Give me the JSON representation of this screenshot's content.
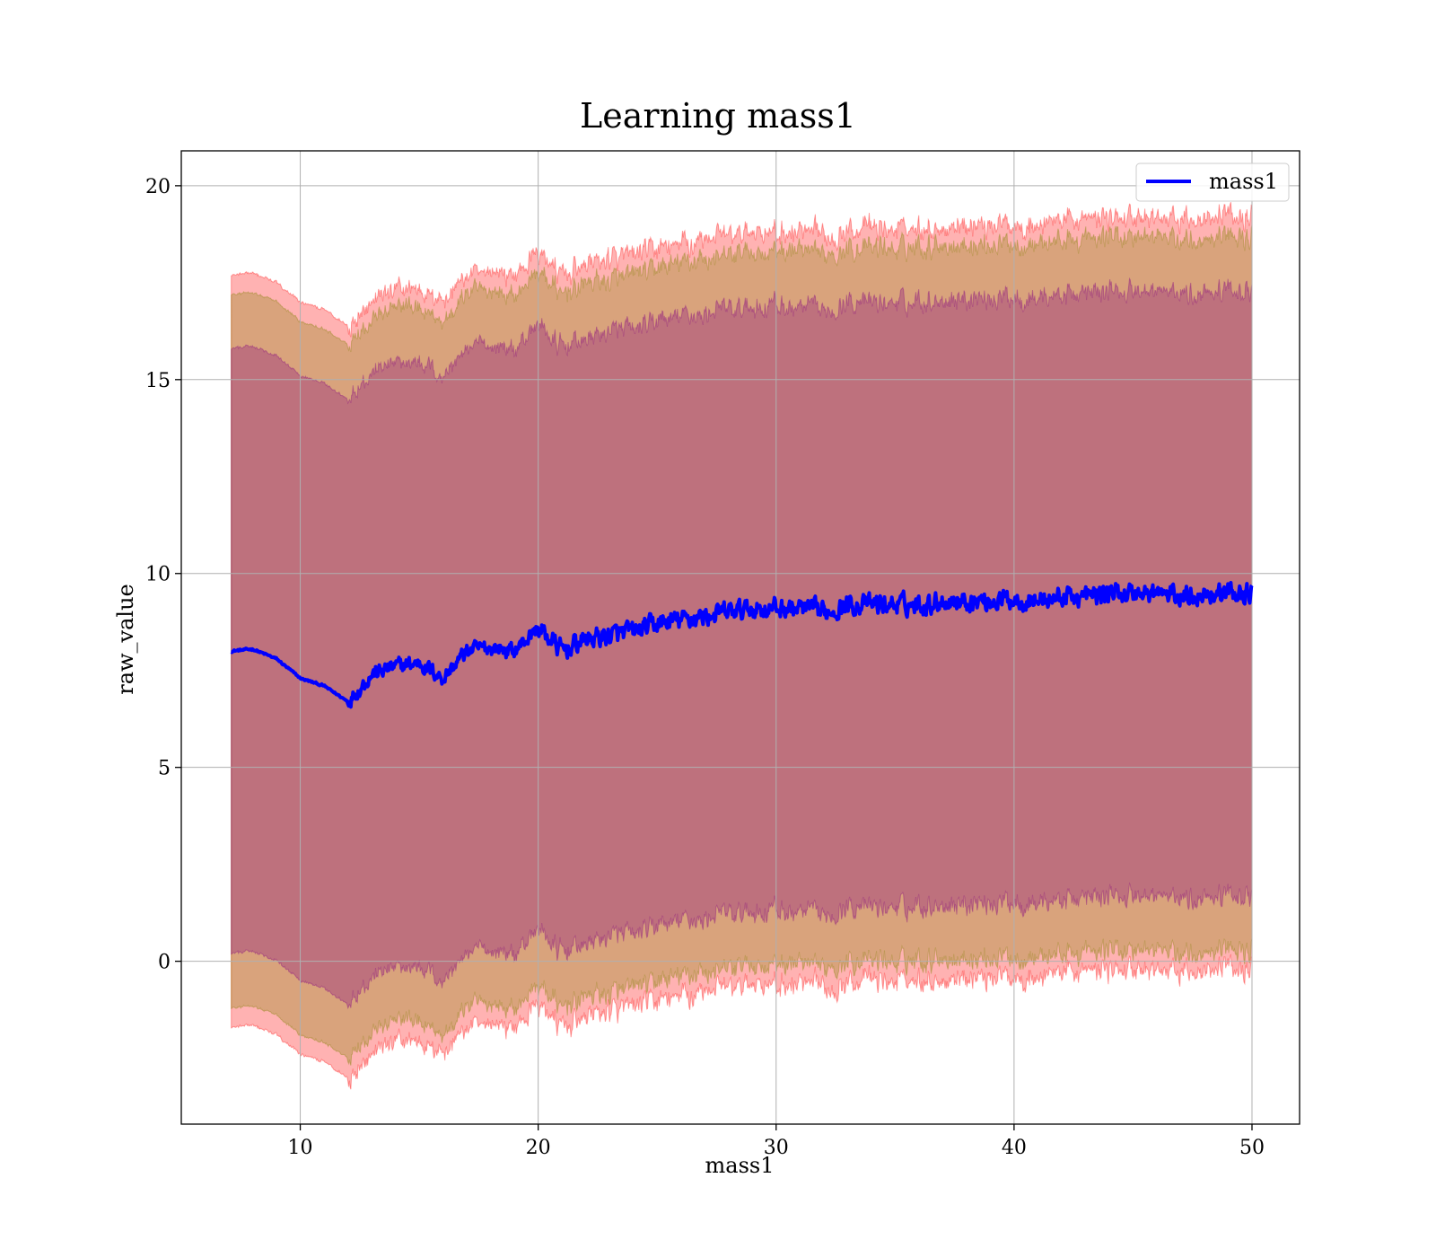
{
  "chart_data": {
    "type": "line",
    "title": "Learning mass1",
    "xlabel": "mass1",
    "ylabel": "raw_value",
    "xlim": [
      5,
      52
    ],
    "ylim": [
      -4.2,
      20.9
    ],
    "xticks": [
      10,
      20,
      30,
      40,
      50
    ],
    "yticks": [
      0,
      5,
      10,
      15,
      20
    ],
    "grid": true,
    "legend": {
      "position": "top-right",
      "entries": [
        "mass1"
      ]
    },
    "colors": {
      "line": "#0000ff",
      "band_outer": "#ff0000",
      "band_mid": "#808000",
      "band_inner": "#800080"
    },
    "series": [
      {
        "name": "mass1",
        "x": [
          7.1,
          8.0,
          9.0,
          10.0,
          11.0,
          12.0,
          13.0,
          14.0,
          15.0,
          16.0,
          17.0,
          18.0,
          19.0,
          20.0,
          21.0,
          22.0,
          23.0,
          24.0,
          25.0,
          26.0,
          27.0,
          28.0,
          29.0,
          30.0,
          31.0,
          32.0,
          33.0,
          34.0,
          35.0,
          36.0,
          37.0,
          38.0,
          39.0,
          40.0,
          41.0,
          42.0,
          43.0,
          44.0,
          45.0,
          46.0,
          47.0,
          48.0,
          49.0,
          50.0
        ],
        "y": [
          8.0,
          8.05,
          7.8,
          7.3,
          7.1,
          6.7,
          7.4,
          7.6,
          7.7,
          7.3,
          8.0,
          8.1,
          8.0,
          8.6,
          8.0,
          8.3,
          8.4,
          8.5,
          8.7,
          8.8,
          8.9,
          9.0,
          9.1,
          9.1,
          9.1,
          9.0,
          9.2,
          9.2,
          9.2,
          9.2,
          9.3,
          9.3,
          9.3,
          9.35,
          9.3,
          9.4,
          9.4,
          9.5,
          9.5,
          9.5,
          9.4,
          9.5,
          9.5,
          9.5
        ],
        "band_inner_half_width": 7.8,
        "band_mid_half_width": 9.2,
        "band_outer_half_width": 9.7
      }
    ]
  }
}
